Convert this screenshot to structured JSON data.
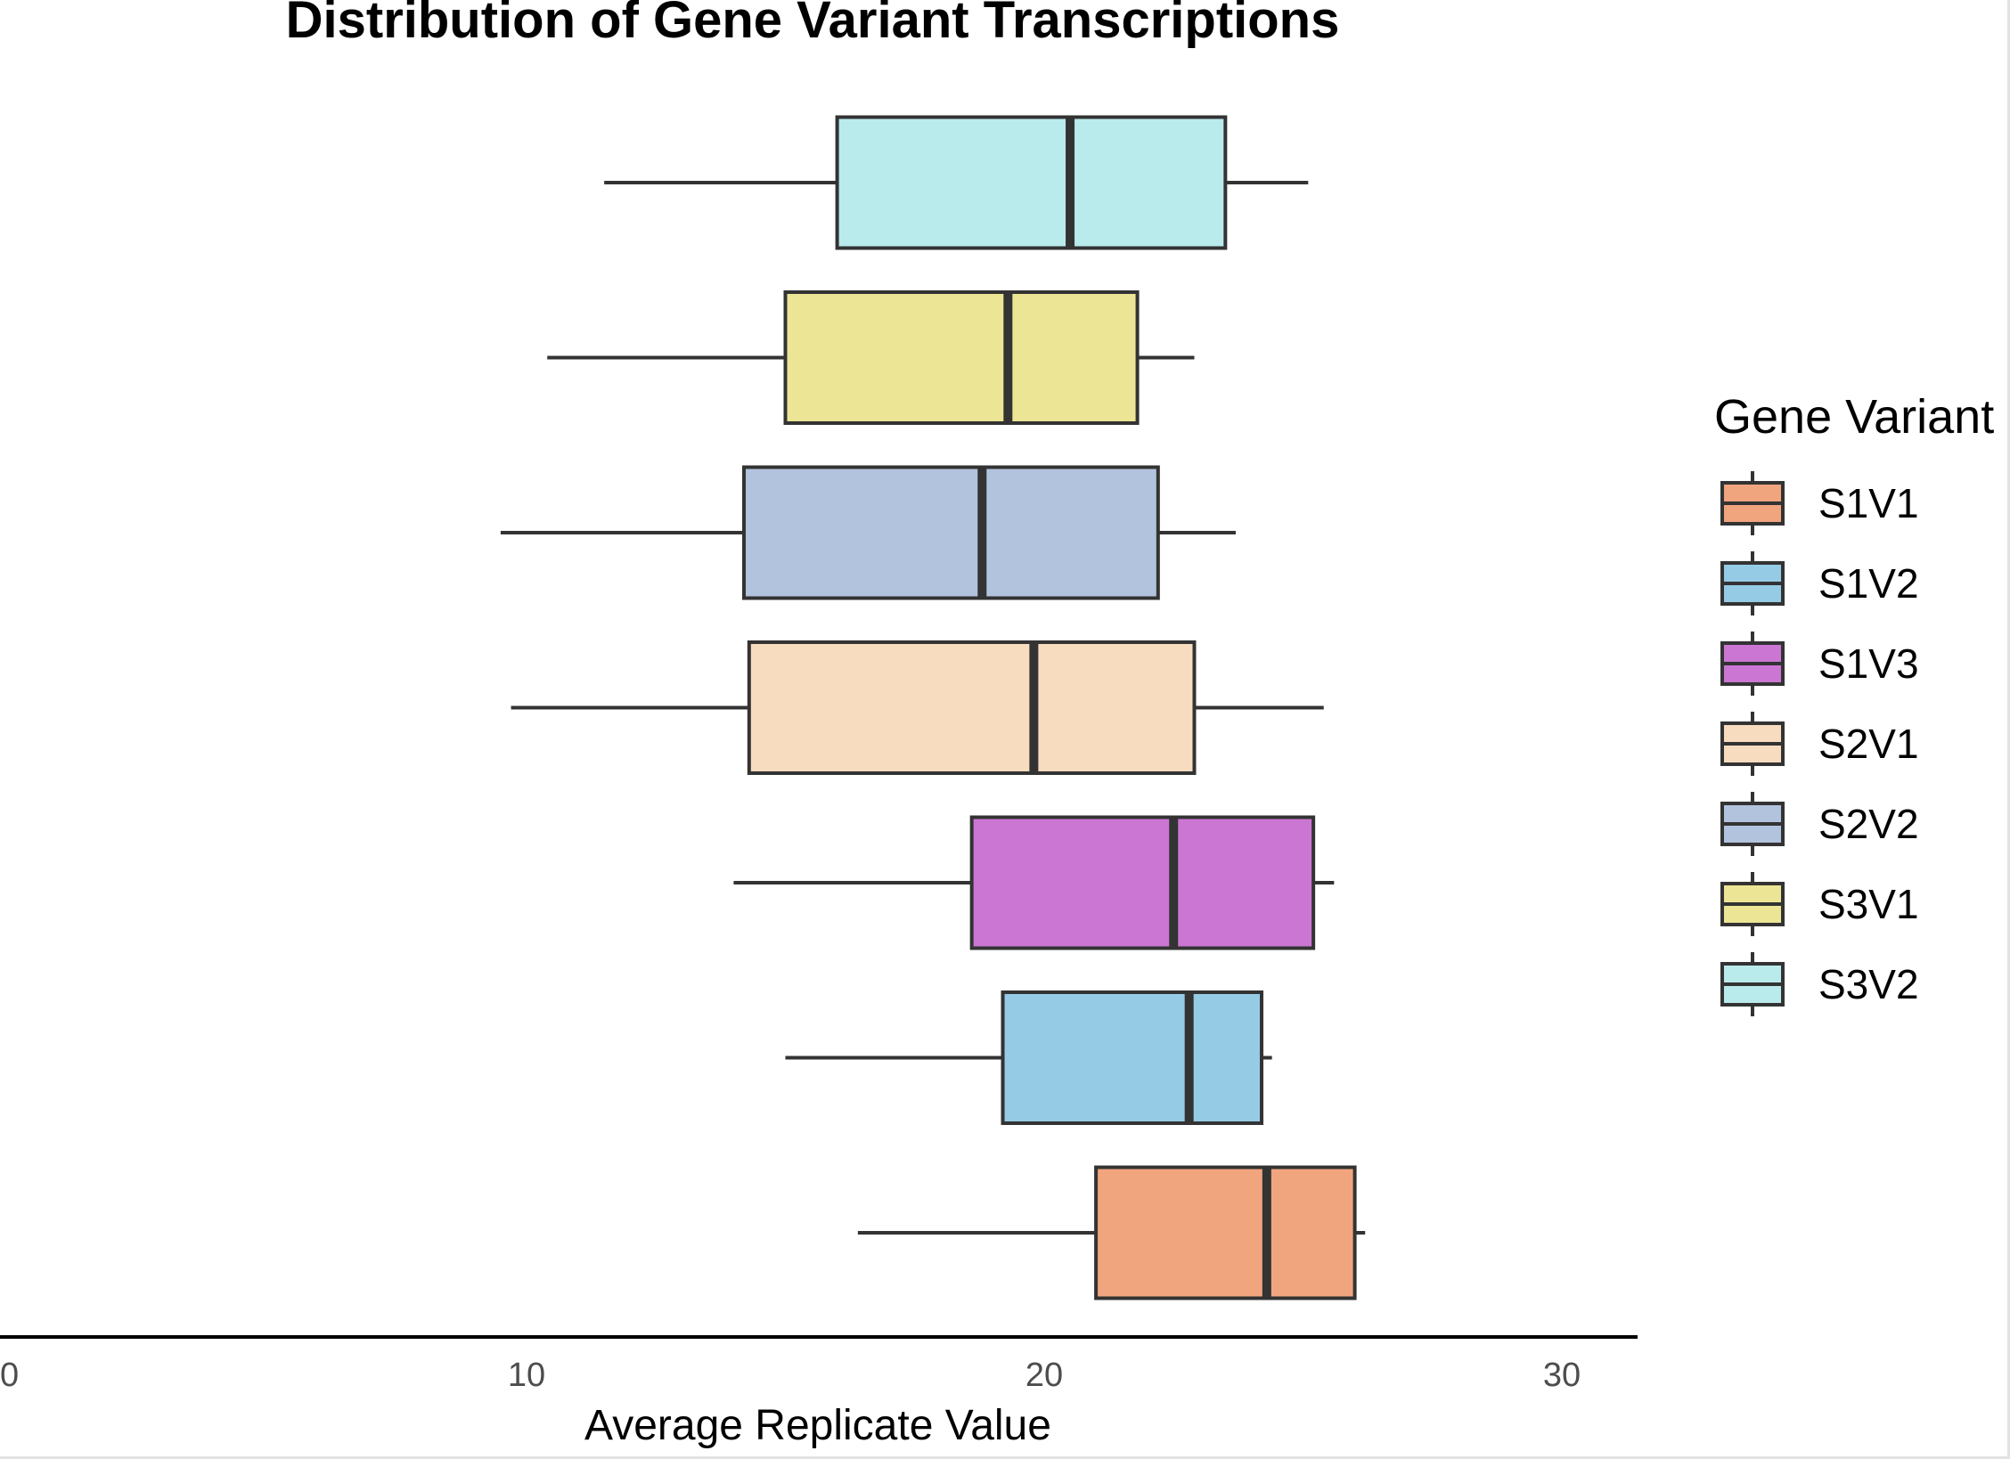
{
  "chart_data": {
    "type": "boxplot",
    "orientation": "horizontal",
    "title": "Distribution of Gene Variant Transcriptions",
    "xlabel": "Average Replicate Value",
    "ylabel": "",
    "xlim": [
      0,
      31.5
    ],
    "x_ticks": [
      "0",
      "10",
      "20",
      "30"
    ],
    "grid": false,
    "legend": {
      "title": "Gene Variant",
      "position": "right"
    },
    "series": [
      {
        "name": "S1V1",
        "min": 16.4,
        "q1": 21.0,
        "median": 24.3,
        "q3": 26.0,
        "max": 26.2,
        "color": "#F0A57F"
      },
      {
        "name": "S1V2",
        "min": 15.0,
        "q1": 19.2,
        "median": 22.8,
        "q3": 24.2,
        "max": 24.4,
        "color": "#96CBE6"
      },
      {
        "name": "S1V3",
        "min": 14.0,
        "q1": 18.6,
        "median": 22.5,
        "q3": 25.2,
        "max": 25.6,
        "color": "#CB76D3"
      },
      {
        "name": "S2V1",
        "min": 9.7,
        "q1": 14.3,
        "median": 19.8,
        "q3": 22.9,
        "max": 25.4,
        "color": "#F8DCBF"
      },
      {
        "name": "S2V2",
        "min": 9.5,
        "q1": 14.2,
        "median": 18.8,
        "q3": 22.2,
        "max": 23.7,
        "color": "#B2C3DD"
      },
      {
        "name": "S3V1",
        "min": 10.4,
        "q1": 15.0,
        "median": 19.3,
        "q3": 21.8,
        "max": 22.9,
        "color": "#EDE596"
      },
      {
        "name": "S3V2",
        "min": 11.5,
        "q1": 16.0,
        "median": 20.5,
        "q3": 23.5,
        "max": 25.1,
        "color": "#B9EAEC"
      }
    ]
  }
}
